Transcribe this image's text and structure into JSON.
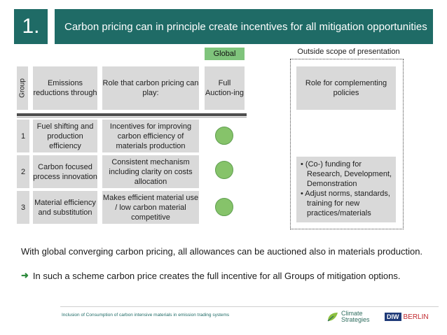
{
  "header": {
    "number": "1.",
    "title": "Carbon pricing can in principle create incentives for all mitigation opportunities"
  },
  "table": {
    "group_label": "Group",
    "col_emissions": "Emissions reductions through",
    "col_role": "Role that carbon pricing can play:",
    "col_global": "Global",
    "col_full": "Full Auction-ing",
    "rows": [
      {
        "num": "1",
        "emissions": "Fuel shifting and production efficiency",
        "role": "Incentives for improving carbon efficiency of materials production",
        "status": "green"
      },
      {
        "num": "2",
        "emissions": "Carbon focused process innovation",
        "role": "Consistent mechanism including clarity on costs allocation",
        "status": "green"
      },
      {
        "num": "3",
        "emissions": "Material efficiency and substitution",
        "role": "Makes efficient material use / low carbon material competitive",
        "status": "green"
      }
    ]
  },
  "outside": {
    "label": "Outside scope of presentation",
    "role_header": "Role for complementing policies",
    "bullets": [
      "• (Co-) funding for Research, Development, Demonstration",
      "• Adjust norms, standards, training for new practices/materials"
    ]
  },
  "body": {
    "line1": "With global converging carbon pricing, all allowances can be auctioned also in materials production.",
    "line2": "In such a scheme carbon price creates the full incentive for all Groups of mitigation options."
  },
  "footer": {
    "text": "Inclusion of Consumption of carbon intensive materials in emission trading systems",
    "logo_cs_line1": "Climate",
    "logo_cs_line2": "Strategies",
    "logo_diw_mark": "DIW",
    "logo_diw_word": "BERLIN"
  },
  "colors": {
    "teal": "#1f6b66",
    "green": "#86c36a",
    "gray": "#d9d9d9"
  },
  "icons": {
    "arrow": "arrow-right-icon",
    "status": "green-circle-icon"
  }
}
